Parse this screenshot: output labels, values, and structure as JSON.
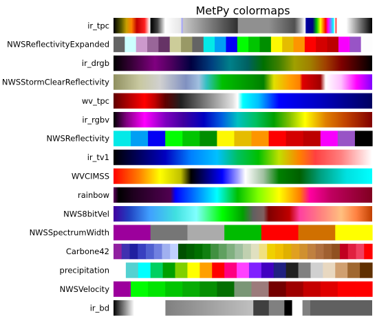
{
  "chart_data": {
    "type": "heatmap",
    "title": "MetPy colormaps",
    "xlabel": "",
    "ylabel": "",
    "grid": false,
    "axes_visible": false,
    "colormaps": [
      {
        "name": "ir_tpc",
        "mode": "gradient",
        "stops": [
          [
            0.0,
            "#000000"
          ],
          [
            0.03,
            "#5a5a00"
          ],
          [
            0.05,
            "#c8a000"
          ],
          [
            0.07,
            "#ff8000"
          ],
          [
            0.09,
            "#c00000"
          ],
          [
            0.12,
            "#ff2020"
          ],
          [
            0.14,
            "#ffffff"
          ],
          [
            0.145,
            "#000000"
          ],
          [
            0.17,
            "#404040"
          ],
          [
            0.2,
            "#ffffff"
          ],
          [
            0.26,
            "#e6e6e6"
          ],
          [
            0.265,
            "#a0a0ff"
          ],
          [
            0.27,
            "#c8c8c8"
          ],
          [
            0.48,
            "#303030"
          ],
          [
            0.481,
            "#909090"
          ],
          [
            0.6,
            "#909090"
          ],
          [
            0.7,
            "#505050"
          ],
          [
            0.72,
            "#a0a0a0"
          ],
          [
            0.74,
            "#ffffff"
          ],
          [
            0.745,
            "#0000a0"
          ],
          [
            0.77,
            "#000080"
          ],
          [
            0.785,
            "#00c000"
          ],
          [
            0.8,
            "#ffff00"
          ],
          [
            0.82,
            "#ff0000"
          ],
          [
            0.83,
            "#ff00ff"
          ],
          [
            0.85,
            "#00ffff"
          ],
          [
            0.855,
            "#ffffff"
          ],
          [
            0.86,
            "#ff3030"
          ],
          [
            0.865,
            "#ffffff"
          ],
          [
            0.9,
            "#ffffff"
          ],
          [
            1.0,
            "#000000"
          ]
        ]
      },
      {
        "name": "NWSReflectivityExpanded",
        "mode": "discrete",
        "colors": [
          "#646464",
          "#ccffff",
          "#cc99cc",
          "#996699",
          "#663366",
          "#cccc99",
          "#999966",
          "#646464",
          "#04e9e7",
          "#019ff4",
          "#0300f4",
          "#02fd02",
          "#01c501",
          "#008e00",
          "#fdf802",
          "#e5bc00",
          "#fd9500",
          "#fd0000",
          "#d40000",
          "#bc0000",
          "#f800fd",
          "#9854c6",
          "#fdfdfd"
        ]
      },
      {
        "name": "ir_drgb",
        "mode": "gradient",
        "stops": [
          [
            0.0,
            "#000000"
          ],
          [
            0.08,
            "#400040"
          ],
          [
            0.16,
            "#800080"
          ],
          [
            0.22,
            "#500060"
          ],
          [
            0.3,
            "#000040"
          ],
          [
            0.38,
            "#004080"
          ],
          [
            0.45,
            "#00808a"
          ],
          [
            0.52,
            "#006060"
          ],
          [
            0.58,
            "#007000"
          ],
          [
            0.64,
            "#408000"
          ],
          [
            0.7,
            "#a0a000"
          ],
          [
            0.76,
            "#a08000"
          ],
          [
            0.82,
            "#a04000"
          ],
          [
            0.88,
            "#800000"
          ],
          [
            0.94,
            "#400000"
          ],
          [
            1.0,
            "#000000"
          ]
        ]
      },
      {
        "name": "NWSStormClearReflectivity",
        "mode": "gradient",
        "stops": [
          [
            0.0,
            "#909060"
          ],
          [
            0.1,
            "#c8c8a0"
          ],
          [
            0.18,
            "#d0d0d0"
          ],
          [
            0.28,
            "#8090c0"
          ],
          [
            0.33,
            "#a0c0e0"
          ],
          [
            0.36,
            "#30c0c0"
          ],
          [
            0.42,
            "#00c000"
          ],
          [
            0.5,
            "#00a000"
          ],
          [
            0.58,
            "#008000"
          ],
          [
            0.62,
            "#e0e000"
          ],
          [
            0.68,
            "#ffa000"
          ],
          [
            0.72,
            "#ff8000"
          ],
          [
            0.73,
            "#e00000"
          ],
          [
            0.8,
            "#a00000"
          ],
          [
            0.82,
            "#ffffff"
          ],
          [
            0.88,
            "#ffc0ff"
          ],
          [
            0.94,
            "#ff00ff"
          ],
          [
            1.0,
            "#8000ff"
          ]
        ]
      },
      {
        "name": "wv_tpc",
        "mode": "gradient",
        "stops": [
          [
            0.0,
            "#600000"
          ],
          [
            0.07,
            "#c00000"
          ],
          [
            0.12,
            "#ff0000"
          ],
          [
            0.16,
            "#c00000"
          ],
          [
            0.2,
            "#600000"
          ],
          [
            0.26,
            "#202020"
          ],
          [
            0.36,
            "#808080"
          ],
          [
            0.46,
            "#e0e0e0"
          ],
          [
            0.48,
            "#ffffff"
          ],
          [
            0.5,
            "#00ffff"
          ],
          [
            0.56,
            "#00c0ff"
          ],
          [
            0.64,
            "#0000ff"
          ],
          [
            0.8,
            "#0000c0"
          ],
          [
            1.0,
            "#000060"
          ]
        ]
      },
      {
        "name": "ir_rgbv",
        "mode": "gradient",
        "stops": [
          [
            0.0,
            "#000000"
          ],
          [
            0.05,
            "#800080"
          ],
          [
            0.12,
            "#ff00ff"
          ],
          [
            0.2,
            "#8000c0"
          ],
          [
            0.27,
            "#4000a0"
          ],
          [
            0.35,
            "#0000c0"
          ],
          [
            0.42,
            "#0060e0"
          ],
          [
            0.48,
            "#00c0c0"
          ],
          [
            0.55,
            "#00c060"
          ],
          [
            0.62,
            "#00a000"
          ],
          [
            0.68,
            "#80c000"
          ],
          [
            0.74,
            "#ffff00"
          ],
          [
            0.82,
            "#e08000"
          ],
          [
            0.9,
            "#c04000"
          ],
          [
            1.0,
            "#800000"
          ]
        ]
      },
      {
        "name": "NWSReflectivity",
        "mode": "discrete",
        "colors": [
          "#04e9e7",
          "#019ff4",
          "#0300f4",
          "#02fd02",
          "#01c501",
          "#008e00",
          "#fdf802",
          "#e5bc00",
          "#fd9500",
          "#fd0000",
          "#d40000",
          "#bc0000",
          "#f800fd",
          "#9854c6",
          "#000000"
        ]
      },
      {
        "name": "ir_tv1",
        "mode": "gradient",
        "stops": [
          [
            0.0,
            "#000000"
          ],
          [
            0.1,
            "#000060"
          ],
          [
            0.2,
            "#0000c0"
          ],
          [
            0.3,
            "#0080ff"
          ],
          [
            0.4,
            "#00c0ff"
          ],
          [
            0.48,
            "#00c060"
          ],
          [
            0.56,
            "#00c000"
          ],
          [
            0.64,
            "#c0e000"
          ],
          [
            0.72,
            "#ff8000"
          ],
          [
            0.78,
            "#ff4040"
          ],
          [
            0.88,
            "#ff8080"
          ],
          [
            1.0,
            "#ffffff"
          ]
        ]
      },
      {
        "name": "WVCIMSS",
        "mode": "gradient",
        "stops": [
          [
            0.0,
            "#ff0000"
          ],
          [
            0.1,
            "#ff8000"
          ],
          [
            0.18,
            "#ffff00"
          ],
          [
            0.26,
            "#c0c000"
          ],
          [
            0.3,
            "#000000"
          ],
          [
            0.36,
            "#000080"
          ],
          [
            0.42,
            "#0000ff"
          ],
          [
            0.48,
            "#a0a0ff"
          ],
          [
            0.51,
            "#ffffff"
          ],
          [
            0.58,
            "#a0c0a0"
          ],
          [
            0.64,
            "#008000"
          ],
          [
            0.72,
            "#006000"
          ],
          [
            0.8,
            "#00a080"
          ],
          [
            0.9,
            "#00e0e0"
          ],
          [
            1.0,
            "#00ffff"
          ]
        ]
      },
      {
        "name": "rainbow",
        "mode": "gradient",
        "stops": [
          [
            0.0,
            "#600060"
          ],
          [
            0.02,
            "#000000"
          ],
          [
            0.08,
            "#200020"
          ],
          [
            0.22,
            "#500050"
          ],
          [
            0.24,
            "#0000ff"
          ],
          [
            0.32,
            "#0080ff"
          ],
          [
            0.4,
            "#00ffff"
          ],
          [
            0.48,
            "#00c000"
          ],
          [
            0.56,
            "#80ff00"
          ],
          [
            0.64,
            "#ffff00"
          ],
          [
            0.72,
            "#ff8000"
          ],
          [
            0.76,
            "#ff00a0"
          ],
          [
            0.84,
            "#c00060"
          ],
          [
            0.92,
            "#a00040"
          ],
          [
            1.0,
            "#800020"
          ]
        ]
      },
      {
        "name": "NWS8bitVel",
        "mode": "gradient",
        "stops": [
          [
            0.0,
            "#4000a0"
          ],
          [
            0.06,
            "#2040c0"
          ],
          [
            0.14,
            "#40a0ff"
          ],
          [
            0.24,
            "#40e0e0"
          ],
          [
            0.32,
            "#80ffff"
          ],
          [
            0.42,
            "#00ff00"
          ],
          [
            0.5,
            "#00a000"
          ],
          [
            0.54,
            "#606060"
          ],
          [
            0.58,
            "#806060"
          ],
          [
            0.6,
            "#800000"
          ],
          [
            0.68,
            "#c00000"
          ],
          [
            0.72,
            "#ff40a0"
          ],
          [
            0.8,
            "#ff8080"
          ],
          [
            0.88,
            "#ffc080"
          ],
          [
            0.94,
            "#ff8040"
          ],
          [
            1.0,
            "#c04000"
          ]
        ]
      },
      {
        "name": "NWSSpectrumWidth",
        "mode": "discrete",
        "colors": [
          "#9c009c",
          "#767676",
          "#ababab",
          "#00bb00",
          "#ff0000",
          "#d07000",
          "#ffff00"
        ]
      },
      {
        "name": "Carbone42",
        "mode": "discrete",
        "colors": [
          "#9020a0",
          "#4030b0",
          "#2020a0",
          "#3840c0",
          "#5060d0",
          "#7080e0",
          "#a0b0f0",
          "#c0d0ff",
          "#005000",
          "#006000",
          "#007000",
          "#108010",
          "#409040",
          "#60a060",
          "#80b080",
          "#a0c0a0",
          "#c0d0b0",
          "#e0e0c0",
          "#f0e080",
          "#f0d000",
          "#f0c000",
          "#e0b000",
          "#e0a020",
          "#d09030",
          "#c08040",
          "#b07040",
          "#a06030",
          "#905020",
          "#c00020",
          "#e02040",
          "#f04060",
          "#ff0000"
        ]
      },
      {
        "name": "precipitation",
        "mode": "discrete",
        "colors": [
          "#ffffff",
          "#54d1d1",
          "#00ffff",
          "#00d060",
          "#00a000",
          "#80d000",
          "#ffff00",
          "#ffa000",
          "#ff0000",
          "#ff0080",
          "#ff40ff",
          "#8020ff",
          "#4000c0",
          "#202080",
          "#202020",
          "#808080",
          "#d0d0d0",
          "#e8d8c0",
          "#d0a070",
          "#a06830",
          "#603000"
        ]
      },
      {
        "name": "NWSVelocity",
        "mode": "discrete",
        "colors": [
          "#9c009c",
          "#02fc02",
          "#01e401",
          "#01c501",
          "#07ac04",
          "#068f03",
          "#046f02",
          "#7a9676",
          "#9c7b7b",
          "#740000",
          "#9e0000",
          "#c50000",
          "#e00000",
          "#fd0000",
          "#fe0000"
        ]
      },
      {
        "name": "ir_bd",
        "mode": "gradient",
        "stops": [
          [
            0.0,
            "#000000"
          ],
          [
            0.08,
            "#ffffff"
          ],
          [
            0.2,
            "#ffffff"
          ],
          [
            0.201,
            "#808080"
          ],
          [
            0.54,
            "#c0c0c0"
          ],
          [
            0.541,
            "#404040"
          ],
          [
            0.6,
            "#404040"
          ],
          [
            0.601,
            "#808080"
          ],
          [
            0.66,
            "#808080"
          ],
          [
            0.661,
            "#000000"
          ],
          [
            0.69,
            "#000000"
          ],
          [
            0.691,
            "#ffffff"
          ],
          [
            0.73,
            "#ffffff"
          ],
          [
            0.731,
            "#808080"
          ],
          [
            0.76,
            "#808080"
          ],
          [
            0.761,
            "#606060"
          ],
          [
            1.0,
            "#606060"
          ]
        ]
      }
    ]
  }
}
